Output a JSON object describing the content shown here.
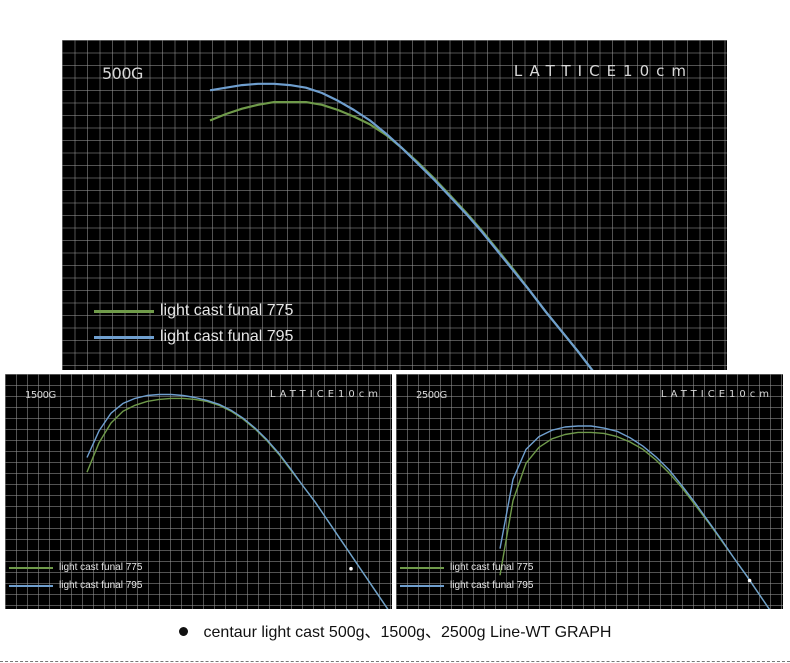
{
  "colors": {
    "series_775": "#6f9a4a",
    "series_795": "#6f9fcf",
    "background": "#000000"
  },
  "panels": [
    {
      "weight_label": "500G",
      "lattice_label": "LATTICE10cm",
      "legend": [
        "light cast funal 775",
        "light cast funal 795"
      ]
    },
    {
      "weight_label": "1500G",
      "lattice_label": "LATTICE10cm",
      "legend": [
        "light cast funal 775",
        "light cast funal 795"
      ]
    },
    {
      "weight_label": "2500G",
      "lattice_label": "LATTICE10cm",
      "legend": [
        "light cast funal 775",
        "light cast funal 795"
      ]
    }
  ],
  "caption": "centaur light cast 500g、1500g、2500g Line-WT GRAPH",
  "chart_data": [
    {
      "type": "line",
      "title": "500G",
      "grid": true,
      "grid_spacing_cm": 10,
      "legend_position": "bottom-left",
      "series": [
        {
          "name": "light cast funal 775",
          "x": [
            0,
            10,
            20,
            30,
            40,
            50,
            60,
            70,
            80,
            90,
            100,
            110,
            120,
            130,
            140,
            150,
            160,
            170,
            180,
            190,
            200,
            210,
            220,
            230,
            240,
            250,
            260,
            270,
            280,
            290,
            300
          ],
          "y": [
            -101,
            -96,
            -92,
            -89,
            -87,
            -87,
            -87,
            -89,
            -93,
            -98,
            -104,
            -112,
            -122,
            -133,
            -145,
            -158,
            -171,
            -185,
            -200,
            -215,
            -231,
            -247,
            -262,
            -277,
            -293,
            -308,
            -324,
            -340,
            -356,
            -372,
            -388
          ]
        },
        {
          "name": "light cast funal 795",
          "x": [
            0,
            10,
            20,
            30,
            40,
            50,
            60,
            70,
            80,
            90,
            100,
            110,
            120,
            130,
            140,
            150,
            160,
            170,
            180,
            190,
            200,
            210,
            220,
            230,
            240,
            250,
            260,
            270,
            280,
            290,
            300
          ],
          "y": [
            -78,
            -76,
            -74,
            -73,
            -73,
            -74,
            -76,
            -80,
            -86,
            -93,
            -101,
            -111,
            -122,
            -134,
            -146,
            -159,
            -172,
            -186,
            -201,
            -216,
            -231,
            -247,
            -262,
            -277,
            -293,
            -308,
            -324,
            -340,
            -356,
            -372,
            -388
          ]
        }
      ],
      "markers": [
        {
          "x": 247,
          "y": -294
        }
      ]
    },
    {
      "type": "line",
      "title": "1500G",
      "grid": true,
      "grid_spacing_cm": 10,
      "legend_position": "bottom-left",
      "series": [
        {
          "name": "light cast funal 775",
          "x": [
            0,
            10,
            20,
            30,
            40,
            50,
            60,
            70,
            80,
            90,
            100,
            110,
            120,
            130,
            140,
            150,
            160,
            170,
            180,
            190,
            200,
            210,
            220,
            230,
            240,
            250,
            260
          ],
          "y": [
            -110,
            -80,
            -60,
            -48,
            -42,
            -38,
            -36,
            -35,
            -35,
            -36,
            -38,
            -42,
            -48,
            -56,
            -66,
            -78,
            -92,
            -108,
            -124,
            -140,
            -158,
            -176,
            -194,
            -212,
            -230,
            -248,
            -266
          ]
        },
        {
          "name": "light cast funal 795",
          "x": [
            0,
            10,
            20,
            30,
            40,
            50,
            60,
            70,
            80,
            90,
            100,
            110,
            120,
            130,
            140,
            150,
            160,
            170,
            180,
            190,
            200,
            210,
            220,
            230,
            240,
            250,
            260
          ],
          "y": [
            -95,
            -68,
            -50,
            -40,
            -35,
            -32,
            -31,
            -31,
            -32,
            -34,
            -37,
            -41,
            -47,
            -55,
            -65,
            -77,
            -91,
            -107,
            -124,
            -140,
            -158,
            -176,
            -194,
            -212,
            -230,
            -248,
            -266
          ]
        }
      ],
      "markers": [
        {
          "x": 220,
          "y": -208
        }
      ]
    },
    {
      "type": "line",
      "title": "2500G",
      "grid": true,
      "grid_spacing_cm": 10,
      "legend_position": "bottom-left",
      "series": [
        {
          "name": "light cast funal 775",
          "x": [
            0,
            10,
            20,
            30,
            40,
            50,
            60,
            70,
            80,
            90,
            100,
            110,
            120,
            130,
            140,
            150,
            160,
            170,
            180,
            190,
            200,
            210,
            220,
            230
          ],
          "y": [
            -200,
            -130,
            -95,
            -80,
            -72,
            -68,
            -66,
            -66,
            -67,
            -70,
            -75,
            -82,
            -92,
            -104,
            -118,
            -134,
            -150,
            -167,
            -184,
            -201,
            -219,
            -237,
            -255,
            -273
          ]
        },
        {
          "name": "light cast funal 795",
          "x": [
            0,
            10,
            20,
            30,
            40,
            50,
            60,
            70,
            80,
            90,
            100,
            110,
            120,
            130,
            140,
            150,
            160,
            170,
            180,
            190,
            200,
            210,
            220,
            230
          ],
          "y": [
            -175,
            -110,
            -82,
            -70,
            -64,
            -61,
            -60,
            -60,
            -62,
            -65,
            -71,
            -79,
            -89,
            -101,
            -116,
            -132,
            -149,
            -166,
            -184,
            -201,
            -219,
            -237,
            -255,
            -273
          ]
        }
      ],
      "markers": [
        {
          "x": 192,
          "y": -205
        }
      ]
    }
  ]
}
